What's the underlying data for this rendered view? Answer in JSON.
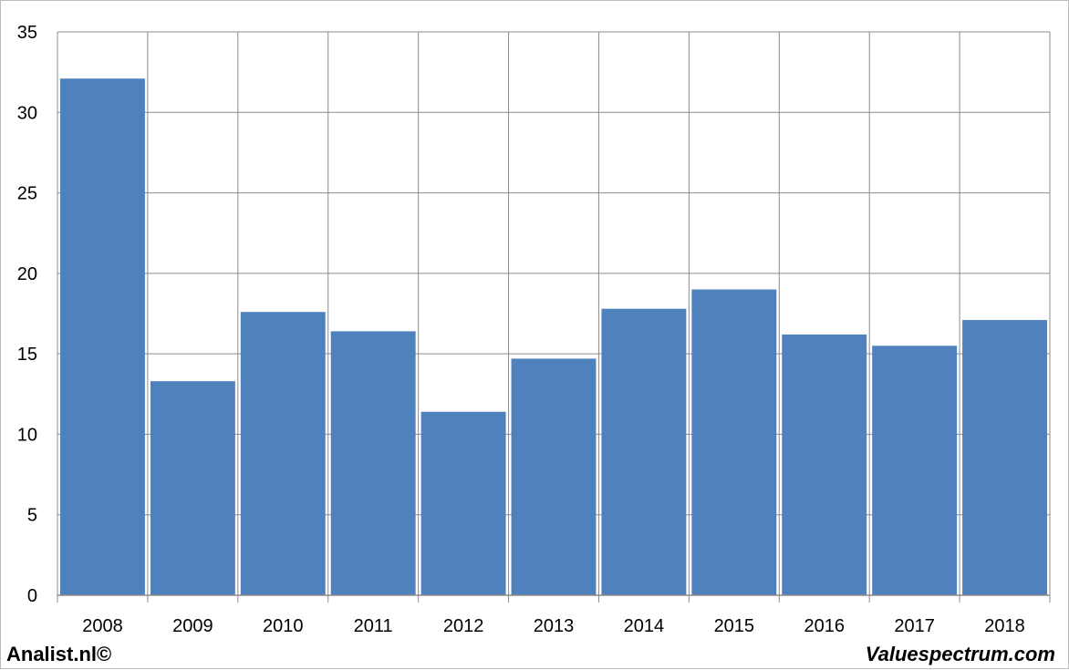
{
  "chart_data": {
    "type": "bar",
    "categories": [
      "2008",
      "2009",
      "2010",
      "2011",
      "2012",
      "2013",
      "2014",
      "2015",
      "2016",
      "2017",
      "2018"
    ],
    "values": [
      32.1,
      13.3,
      17.6,
      16.4,
      11.4,
      14.7,
      17.8,
      19.0,
      16.2,
      15.5,
      17.1
    ],
    "ylim": [
      0,
      35
    ],
    "yticks": [
      0,
      5,
      10,
      15,
      20,
      25,
      30,
      35
    ],
    "grid": true,
    "bar_color": "#4f81bd",
    "title": "",
    "xlabel": "",
    "ylabel": ""
  },
  "footer": {
    "left_text": "Analist.nl©",
    "right_text": "Valuespectrum.com"
  }
}
